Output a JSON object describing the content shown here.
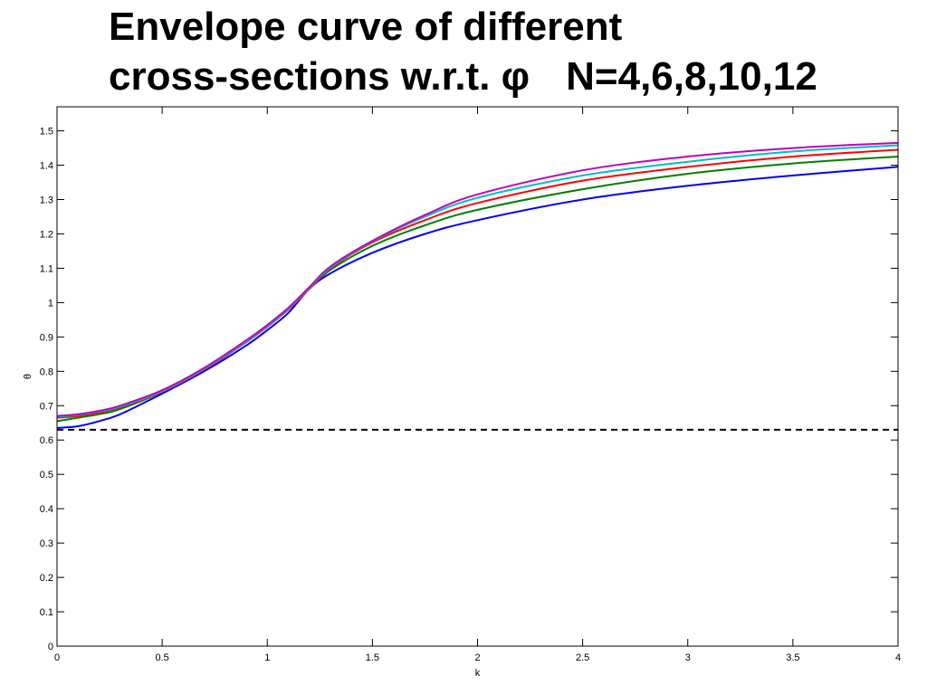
{
  "slide": {
    "title_line1": "Envelope curve of different",
    "title_line2_a": "cross-sections w.r.t. φ",
    "title_line2_b": "N=4,6,8,10,12"
  },
  "chart_data": {
    "type": "line",
    "xlabel": "k",
    "ylabel": "θ",
    "xlim": [
      0,
      4
    ],
    "ylim": [
      0,
      1.5
    ],
    "x_ticks": [
      "0",
      "0.5",
      "1",
      "1.5",
      "2",
      "2.5",
      "3",
      "3.5",
      "4"
    ],
    "y_ticks": [
      "0",
      "0.1",
      "0.2",
      "0.3",
      "0.4",
      "0.5",
      "0.6",
      "0.7",
      "0.8",
      "0.9",
      "1",
      "1.1",
      "1.2",
      "1.3",
      "1.4",
      "1.5"
    ],
    "grid": false,
    "series": [
      {
        "color": "#0000ff",
        "x": [
          0,
          0.1,
          0.2,
          0.3,
          0.5,
          0.7,
          0.9,
          1.0,
          1.1,
          1.2,
          1.3,
          1.5,
          1.75,
          2.0,
          2.5,
          3.0,
          3.5,
          4.0
        ],
        "y": [
          0.635,
          0.64,
          0.655,
          0.675,
          0.735,
          0.8,
          0.875,
          0.92,
          0.97,
          1.04,
          1.085,
          1.145,
          1.2,
          1.24,
          1.3,
          1.34,
          1.37,
          1.395
        ]
      },
      {
        "color": "#008000",
        "x": [
          0,
          0.1,
          0.2,
          0.3,
          0.5,
          0.7,
          0.9,
          1.0,
          1.1,
          1.2,
          1.3,
          1.5,
          1.75,
          2.0,
          2.5,
          3.0,
          3.5,
          4.0
        ],
        "y": [
          0.655,
          0.665,
          0.675,
          0.69,
          0.74,
          0.805,
          0.885,
          0.93,
          0.98,
          1.04,
          1.095,
          1.165,
          1.225,
          1.27,
          1.33,
          1.375,
          1.405,
          1.425
        ]
      },
      {
        "color": "#ff0000",
        "x": [
          0,
          0.1,
          0.2,
          0.3,
          0.5,
          0.7,
          0.9,
          1.0,
          1.1,
          1.2,
          1.3,
          1.5,
          1.75,
          2.0,
          2.5,
          3.0,
          3.5,
          4.0
        ],
        "y": [
          0.665,
          0.67,
          0.68,
          0.695,
          0.74,
          0.805,
          0.885,
          0.93,
          0.98,
          1.04,
          1.1,
          1.175,
          1.24,
          1.29,
          1.355,
          1.395,
          1.425,
          1.445
        ]
      },
      {
        "color": "#00bfbf",
        "x": [
          0,
          0.1,
          0.2,
          0.3,
          0.5,
          0.7,
          0.9,
          1.0,
          1.1,
          1.2,
          1.3,
          1.5,
          1.75,
          2.0,
          2.5,
          3.0,
          3.5,
          4.0
        ],
        "y": [
          0.668,
          0.673,
          0.683,
          0.697,
          0.742,
          0.807,
          0.887,
          0.932,
          0.982,
          1.042,
          1.102,
          1.178,
          1.25,
          1.305,
          1.37,
          1.41,
          1.44,
          1.458
        ]
      },
      {
        "color": "#bf00bf",
        "x": [
          0,
          0.1,
          0.2,
          0.3,
          0.5,
          0.7,
          0.9,
          1.0,
          1.1,
          1.2,
          1.3,
          1.5,
          1.75,
          2.0,
          2.5,
          3.0,
          3.5,
          4.0
        ],
        "y": [
          0.67,
          0.675,
          0.685,
          0.7,
          0.745,
          0.81,
          0.89,
          0.935,
          0.985,
          1.045,
          1.105,
          1.18,
          1.255,
          1.315,
          1.385,
          1.425,
          1.45,
          1.465
        ]
      }
    ],
    "reference_line": {
      "y": 0.63,
      "style": "dashed",
      "color": "#000000"
    }
  }
}
